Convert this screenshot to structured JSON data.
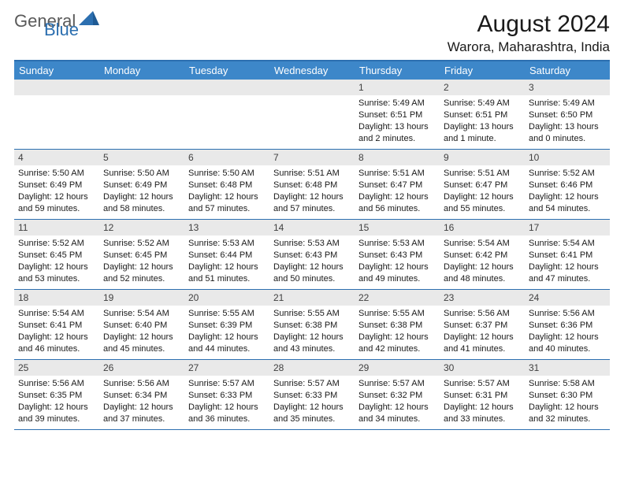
{
  "logo": {
    "general": "General",
    "blue": "Blue"
  },
  "title": "August 2024",
  "location": "Warora, Maharashtra, India",
  "colors": {
    "header_bg": "#3d87c9",
    "border": "#2c6fb0",
    "daynum_bg": "#e9e9e9",
    "text": "#1a1a1a",
    "logo_gray": "#5a5a5a",
    "logo_blue": "#2c6fb0"
  },
  "day_labels": [
    "Sunday",
    "Monday",
    "Tuesday",
    "Wednesday",
    "Thursday",
    "Friday",
    "Saturday"
  ],
  "weeks": [
    [
      {
        "n": "",
        "sr": "",
        "ss": "",
        "dl": ""
      },
      {
        "n": "",
        "sr": "",
        "ss": "",
        "dl": ""
      },
      {
        "n": "",
        "sr": "",
        "ss": "",
        "dl": ""
      },
      {
        "n": "",
        "sr": "",
        "ss": "",
        "dl": ""
      },
      {
        "n": "1",
        "sr": "5:49 AM",
        "ss": "6:51 PM",
        "dl": "13 hours and 2 minutes."
      },
      {
        "n": "2",
        "sr": "5:49 AM",
        "ss": "6:51 PM",
        "dl": "13 hours and 1 minute."
      },
      {
        "n": "3",
        "sr": "5:49 AM",
        "ss": "6:50 PM",
        "dl": "13 hours and 0 minutes."
      }
    ],
    [
      {
        "n": "4",
        "sr": "5:50 AM",
        "ss": "6:49 PM",
        "dl": "12 hours and 59 minutes."
      },
      {
        "n": "5",
        "sr": "5:50 AM",
        "ss": "6:49 PM",
        "dl": "12 hours and 58 minutes."
      },
      {
        "n": "6",
        "sr": "5:50 AM",
        "ss": "6:48 PM",
        "dl": "12 hours and 57 minutes."
      },
      {
        "n": "7",
        "sr": "5:51 AM",
        "ss": "6:48 PM",
        "dl": "12 hours and 57 minutes."
      },
      {
        "n": "8",
        "sr": "5:51 AM",
        "ss": "6:47 PM",
        "dl": "12 hours and 56 minutes."
      },
      {
        "n": "9",
        "sr": "5:51 AM",
        "ss": "6:47 PM",
        "dl": "12 hours and 55 minutes."
      },
      {
        "n": "10",
        "sr": "5:52 AM",
        "ss": "6:46 PM",
        "dl": "12 hours and 54 minutes."
      }
    ],
    [
      {
        "n": "11",
        "sr": "5:52 AM",
        "ss": "6:45 PM",
        "dl": "12 hours and 53 minutes."
      },
      {
        "n": "12",
        "sr": "5:52 AM",
        "ss": "6:45 PM",
        "dl": "12 hours and 52 minutes."
      },
      {
        "n": "13",
        "sr": "5:53 AM",
        "ss": "6:44 PM",
        "dl": "12 hours and 51 minutes."
      },
      {
        "n": "14",
        "sr": "5:53 AM",
        "ss": "6:43 PM",
        "dl": "12 hours and 50 minutes."
      },
      {
        "n": "15",
        "sr": "5:53 AM",
        "ss": "6:43 PM",
        "dl": "12 hours and 49 minutes."
      },
      {
        "n": "16",
        "sr": "5:54 AM",
        "ss": "6:42 PM",
        "dl": "12 hours and 48 minutes."
      },
      {
        "n": "17",
        "sr": "5:54 AM",
        "ss": "6:41 PM",
        "dl": "12 hours and 47 minutes."
      }
    ],
    [
      {
        "n": "18",
        "sr": "5:54 AM",
        "ss": "6:41 PM",
        "dl": "12 hours and 46 minutes."
      },
      {
        "n": "19",
        "sr": "5:54 AM",
        "ss": "6:40 PM",
        "dl": "12 hours and 45 minutes."
      },
      {
        "n": "20",
        "sr": "5:55 AM",
        "ss": "6:39 PM",
        "dl": "12 hours and 44 minutes."
      },
      {
        "n": "21",
        "sr": "5:55 AM",
        "ss": "6:38 PM",
        "dl": "12 hours and 43 minutes."
      },
      {
        "n": "22",
        "sr": "5:55 AM",
        "ss": "6:38 PM",
        "dl": "12 hours and 42 minutes."
      },
      {
        "n": "23",
        "sr": "5:56 AM",
        "ss": "6:37 PM",
        "dl": "12 hours and 41 minutes."
      },
      {
        "n": "24",
        "sr": "5:56 AM",
        "ss": "6:36 PM",
        "dl": "12 hours and 40 minutes."
      }
    ],
    [
      {
        "n": "25",
        "sr": "5:56 AM",
        "ss": "6:35 PM",
        "dl": "12 hours and 39 minutes."
      },
      {
        "n": "26",
        "sr": "5:56 AM",
        "ss": "6:34 PM",
        "dl": "12 hours and 37 minutes."
      },
      {
        "n": "27",
        "sr": "5:57 AM",
        "ss": "6:33 PM",
        "dl": "12 hours and 36 minutes."
      },
      {
        "n": "28",
        "sr": "5:57 AM",
        "ss": "6:33 PM",
        "dl": "12 hours and 35 minutes."
      },
      {
        "n": "29",
        "sr": "5:57 AM",
        "ss": "6:32 PM",
        "dl": "12 hours and 34 minutes."
      },
      {
        "n": "30",
        "sr": "5:57 AM",
        "ss": "6:31 PM",
        "dl": "12 hours and 33 minutes."
      },
      {
        "n": "31",
        "sr": "5:58 AM",
        "ss": "6:30 PM",
        "dl": "12 hours and 32 minutes."
      }
    ]
  ],
  "labels": {
    "sunrise": "Sunrise: ",
    "sunset": "Sunset: ",
    "daylight": "Daylight: "
  }
}
